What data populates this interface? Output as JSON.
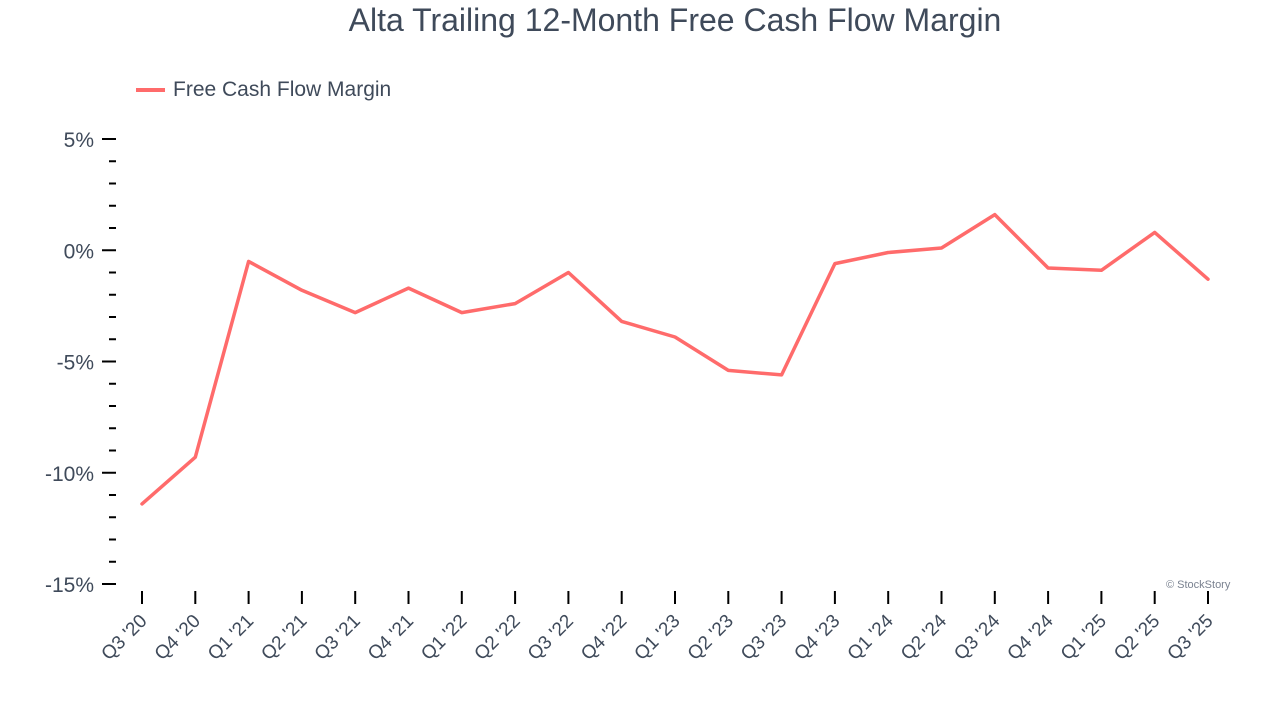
{
  "title": "Alta Trailing 12-Month Free Cash Flow Margin",
  "legend": {
    "label": "Free Cash Flow Margin",
    "color": "#ff6b6b"
  },
  "credit": "© StockStory",
  "chart_data": {
    "type": "line",
    "title": "Alta Trailing 12-Month Free Cash Flow Margin",
    "xlabel": "",
    "ylabel": "",
    "ylim": [
      -15,
      5
    ],
    "yticks": [
      5,
      0,
      -5,
      -10,
      -15
    ],
    "ytick_labels": [
      "5%",
      "0%",
      "-5%",
      "-10%",
      "-15%"
    ],
    "grid": false,
    "legend_position": "top-left",
    "categories": [
      "Q3 '20",
      "Q4 '20",
      "Q1 '21",
      "Q2 '21",
      "Q3 '21",
      "Q4 '21",
      "Q1 '22",
      "Q2 '22",
      "Q3 '22",
      "Q4 '22",
      "Q1 '23",
      "Q2 '23",
      "Q3 '23",
      "Q4 '23",
      "Q1 '24",
      "Q2 '24",
      "Q3 '24",
      "Q4 '24",
      "Q1 '25",
      "Q2 '25",
      "Q3 '25"
    ],
    "series": [
      {
        "name": "Free Cash Flow Margin",
        "color": "#ff6b6b",
        "values": [
          -11.4,
          -9.3,
          -0.5,
          -1.8,
          -2.8,
          -1.7,
          -2.8,
          -2.4,
          -1.0,
          -3.2,
          -3.9,
          -5.4,
          -5.6,
          -0.6,
          -0.1,
          0.1,
          1.6,
          -0.8,
          -0.9,
          0.8,
          -1.3
        ]
      }
    ]
  }
}
